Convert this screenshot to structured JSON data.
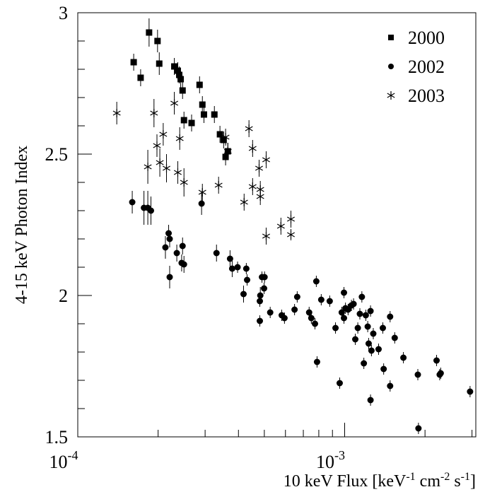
{
  "chart_data": {
    "type": "scatter",
    "ylabel": "4-15 keV Photon Index",
    "xlabel_parts": [
      "10 keV Flux [keV",
      "-1",
      " cm",
      "-2",
      " s",
      "-1",
      "]"
    ],
    "log_x": true,
    "xlim": [
      0.0001,
      0.0031
    ],
    "ylim": [
      1.5,
      3
    ],
    "xticks": [
      {
        "value": 0.0001,
        "label": "10",
        "exponent": "-4"
      },
      {
        "value": 0.001,
        "label": "10",
        "exponent": "-3"
      }
    ],
    "xminor_ticks": [
      0.0002,
      0.0003,
      0.0004,
      0.0005,
      0.0006,
      0.0007,
      0.0008,
      0.0009,
      0.002,
      0.003
    ],
    "yticks": [
      1.5,
      2,
      2.5,
      3
    ],
    "yminor_ticks": [
      1.6,
      1.7,
      1.8,
      1.9,
      2.1,
      2.2,
      2.3,
      2.4,
      2.6,
      2.7,
      2.8,
      2.9
    ],
    "legend": "upper right",
    "series": [
      {
        "name": "2000",
        "marker": "square",
        "color": "#000000",
        "x": [
          0.000162,
          0.000172,
          0.000185,
          0.000199,
          0.000202,
          0.00023,
          0.000237,
          0.00024,
          0.000243,
          0.000247,
          0.00025,
          0.000267,
          0.000286,
          0.000293,
          0.000297,
          0.000325,
          0.000341,
          0.000352,
          0.000358,
          0.000365
        ],
        "values": [
          2.825,
          2.77,
          2.93,
          2.9,
          2.82,
          2.81,
          2.795,
          2.78,
          2.765,
          2.725,
          2.62,
          2.61,
          2.745,
          2.675,
          2.64,
          2.64,
          2.57,
          2.55,
          2.49,
          2.51
        ],
        "errors": [
          0.03,
          0.03,
          0.05,
          0.04,
          0.04,
          0.03,
          0.03,
          0.03,
          0.03,
          0.03,
          0.03,
          0.03,
          0.03,
          0.03,
          0.03,
          0.03,
          0.03,
          0.03,
          0.03,
          0.03
        ]
      },
      {
        "name": "2002",
        "marker": "circle",
        "color": "#000000",
        "x": [
          0.00016,
          0.000177,
          0.000183,
          0.000188,
          0.000213,
          0.000219,
          0.000221,
          0.000221,
          0.000235,
          0.000245,
          0.000247,
          0.00025,
          0.000291,
          0.000331,
          0.000372,
          0.000379,
          0.000397,
          0.000418,
          0.000428,
          0.000431,
          0.000481,
          0.000481,
          0.000483,
          0.00049,
          0.000499,
          0.000501,
          0.000526,
          0.000581,
          0.000595,
          0.000649,
          0.000664,
          0.000736,
          0.00075,
          0.000774,
          0.000783,
          0.000788,
          0.000817,
          0.000879,
          0.000924,
          0.000958,
          0.000975,
          0.000994,
          0.000994,
          0.001007,
          0.00103,
          0.00106,
          0.00108,
          0.001096,
          0.00112,
          0.00114,
          0.00116,
          0.00118,
          0.0012,
          0.00122,
          0.00123,
          0.00125,
          0.00125,
          0.00126,
          0.00128,
          0.00134,
          0.00139,
          0.0014,
          0.00148,
          0.00148,
          0.00154,
          0.00166,
          0.00188,
          0.00189,
          0.00221,
          0.00227,
          0.00229,
          0.00295
        ],
        "values": [
          2.33,
          2.31,
          2.31,
          2.3,
          2.17,
          2.22,
          2.2,
          2.065,
          2.15,
          2.115,
          2.175,
          2.11,
          2.325,
          2.15,
          2.13,
          2.095,
          2.1,
          2.005,
          2.095,
          2.055,
          1.98,
          1.91,
          2.0,
          2.065,
          2.025,
          2.065,
          1.94,
          1.93,
          1.92,
          1.95,
          1.995,
          1.94,
          1.92,
          1.9,
          2.05,
          1.765,
          1.985,
          1.98,
          1.885,
          1.69,
          1.94,
          1.92,
          2.01,
          1.955,
          1.95,
          1.965,
          1.97,
          1.845,
          1.885,
          1.935,
          1.995,
          1.76,
          1.93,
          1.89,
          1.83,
          1.945,
          1.63,
          1.805,
          1.865,
          1.81,
          1.885,
          1.74,
          1.925,
          1.68,
          1.85,
          1.78,
          1.72,
          1.53,
          1.77,
          1.72,
          1.725,
          1.66
        ],
        "errors": [
          0.04,
          0.06,
          0.06,
          0.05,
          0.04,
          0.03,
          0.03,
          0.04,
          0.03,
          0.03,
          0.03,
          0.03,
          0.04,
          0.03,
          0.03,
          0.03,
          0.02,
          0.03,
          0.02,
          0.02,
          0.02,
          0.02,
          0.03,
          0.02,
          0.02,
          0.02,
          0.02,
          0.02,
          0.02,
          0.02,
          0.02,
          0.02,
          0.02,
          0.02,
          0.02,
          0.02,
          0.02,
          0.02,
          0.02,
          0.02,
          0.02,
          0.02,
          0.02,
          0.02,
          0.02,
          0.02,
          0.02,
          0.02,
          0.02,
          0.02,
          0.02,
          0.02,
          0.02,
          0.02,
          0.02,
          0.02,
          0.02,
          0.02,
          0.02,
          0.02,
          0.02,
          0.02,
          0.02,
          0.02,
          0.02,
          0.02,
          0.02,
          0.02,
          0.02,
          0.02,
          0.02,
          0.02
        ]
      },
      {
        "name": "2003",
        "marker": "star",
        "color": "#000000",
        "x": [
          0.00014,
          0.000183,
          0.000193,
          0.000198,
          0.000203,
          0.000209,
          0.000215,
          0.00023,
          0.000237,
          0.000241,
          0.00025,
          0.000293,
          0.000337,
          0.000358,
          0.000365,
          0.00042,
          0.000438,
          0.000452,
          0.000452,
          0.000478,
          0.000483,
          0.000483,
          0.000508,
          0.000508,
          0.000577,
          0.000629,
          0.000629
        ],
        "values": [
          2.645,
          2.455,
          2.645,
          2.53,
          2.47,
          2.57,
          2.45,
          2.68,
          2.435,
          2.555,
          2.4,
          2.365,
          2.39,
          2.56,
          2.51,
          2.33,
          2.59,
          2.52,
          2.385,
          2.45,
          2.375,
          2.35,
          2.48,
          2.21,
          2.245,
          2.27,
          2.215
        ],
        "errors": [
          0.04,
          0.06,
          0.05,
          0.04,
          0.05,
          0.04,
          0.05,
          0.04,
          0.04,
          0.04,
          0.05,
          0.03,
          0.03,
          0.03,
          0.03,
          0.03,
          0.03,
          0.03,
          0.03,
          0.03,
          0.03,
          0.03,
          0.03,
          0.03,
          0.03,
          0.03,
          0.02
        ]
      }
    ]
  }
}
